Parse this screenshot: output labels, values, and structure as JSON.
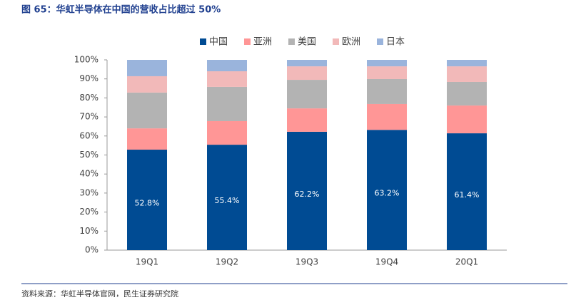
{
  "title_text": "图 65：华虹半导体在中国的营收占比超过 50%",
  "source": "资料来源：华虹半导体官网，民生证券研究院",
  "chart_data": {
    "type": "stacked-bar",
    "categories": [
      "19Q1",
      "19Q2",
      "19Q3",
      "19Q4",
      "20Q1"
    ],
    "series": [
      {
        "name": "中国",
        "color": "#004b93",
        "values": [
          52.8,
          55.4,
          62.2,
          63.2,
          61.4
        ],
        "value_labels": [
          "52.8%",
          "55.4%",
          "62.2%",
          "63.2%",
          "61.4%"
        ]
      },
      {
        "name": "亚洲",
        "color": "#ff9696",
        "values": [
          11.2,
          12.4,
          12.3,
          13.6,
          14.6
        ]
      },
      {
        "name": "美国",
        "color": "#b3b3b3",
        "values": [
          18.8,
          18.0,
          15.0,
          13.1,
          12.4
        ]
      },
      {
        "name": "欧洲",
        "color": "#f2b9b9",
        "values": [
          8.6,
          8.2,
          7.1,
          6.7,
          8.2
        ]
      },
      {
        "name": "日本",
        "color": "#9ab4dc",
        "values": [
          8.6,
          6.0,
          3.4,
          3.4,
          3.4
        ]
      }
    ],
    "ylim": [
      0,
      100
    ],
    "yticks": [
      {
        "value": 0,
        "label": "0%"
      },
      {
        "value": 10,
        "label": "10%"
      },
      {
        "value": 20,
        "label": "20%"
      },
      {
        "value": 30,
        "label": "30%"
      },
      {
        "value": 40,
        "label": "40%"
      },
      {
        "value": 50,
        "label": "50%"
      },
      {
        "value": 60,
        "label": "60%"
      },
      {
        "value": 70,
        "label": "70%"
      },
      {
        "value": 80,
        "label": "80%"
      },
      {
        "value": 90,
        "label": "90%"
      },
      {
        "value": 100,
        "label": "100%"
      }
    ],
    "legend": "top"
  }
}
